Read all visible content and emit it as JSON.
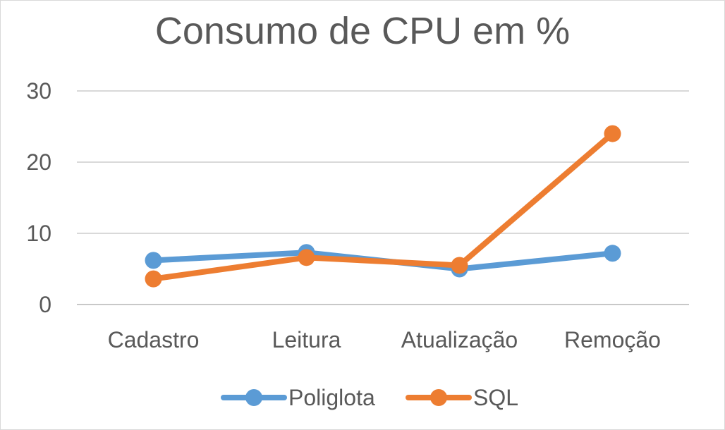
{
  "chart_data": {
    "type": "line",
    "title": "Consumo de CPU em %",
    "categories": [
      "Cadastro",
      "Leitura",
      "Atualização",
      "Remoção"
    ],
    "ylim": [
      0,
      30
    ],
    "yticks": [
      0,
      10,
      20,
      30
    ],
    "grid": true,
    "legend_position": "bottom",
    "series": [
      {
        "name": "Poliglota",
        "color": "#5b9bd5",
        "values": [
          6.2,
          7.3,
          5.0,
          7.2
        ]
      },
      {
        "name": "SQL",
        "color": "#ed7d31",
        "values": [
          3.6,
          6.6,
          5.5,
          24.0
        ]
      }
    ]
  }
}
